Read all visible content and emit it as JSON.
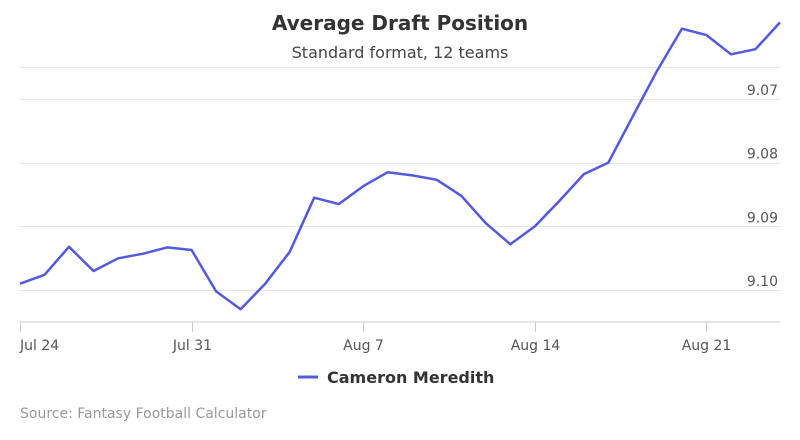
{
  "chart_data": {
    "type": "line",
    "title": "Average Draft Position",
    "subtitle": "Standard format, 12 teams",
    "xlabel": "",
    "ylabel": "",
    "y_reversed": true,
    "ylim": [
      9.065,
      9.105
    ],
    "y_ticks": [
      9.07,
      9.08,
      9.09,
      9.1
    ],
    "y_tick_labels": [
      "9.07",
      "9.08",
      "9.09",
      "9.10"
    ],
    "x_ticks": [
      "2023-07-24",
      "2023-07-31",
      "2023-08-07",
      "2023-08-14",
      "2023-08-21"
    ],
    "x_tick_labels": [
      "Jul 24",
      "Jul 31",
      "Aug 7",
      "Aug 14",
      "Aug 21"
    ],
    "xlim": [
      "2023-07-24",
      "2023-08-24"
    ],
    "grid": "horizontal",
    "legend_position": "bottom-center",
    "color": "#5359e0",
    "series": [
      {
        "name": "Cameron Meredith",
        "x": [
          "2023-07-24",
          "2023-07-25",
          "2023-07-26",
          "2023-07-27",
          "2023-07-28",
          "2023-07-29",
          "2023-07-30",
          "2023-07-31",
          "2023-08-01",
          "2023-08-02",
          "2023-08-03",
          "2023-08-04",
          "2023-08-05",
          "2023-08-06",
          "2023-08-07",
          "2023-08-08",
          "2023-08-09",
          "2023-08-10",
          "2023-08-11",
          "2023-08-12",
          "2023-08-13",
          "2023-08-14",
          "2023-08-15",
          "2023-08-16",
          "2023-08-17",
          "2023-08-18",
          "2023-08-19",
          "2023-08-20",
          "2023-08-21",
          "2023-08-22",
          "2023-08-23",
          "2023-08-24"
        ],
        "values": [
          9.099,
          9.0976,
          9.0932,
          9.097,
          9.095,
          9.0943,
          9.0933,
          9.0937,
          9.1002,
          9.103,
          9.099,
          9.094,
          9.0855,
          9.0865,
          9.0837,
          9.0815,
          9.082,
          9.0827,
          9.0852,
          9.0895,
          9.0928,
          9.09,
          9.086,
          9.0818,
          9.08,
          9.0727,
          9.0655,
          9.059,
          9.06,
          9.063,
          9.0622,
          9.058
        ]
      }
    ]
  },
  "credits": "Source: Fantasy Football Calculator"
}
